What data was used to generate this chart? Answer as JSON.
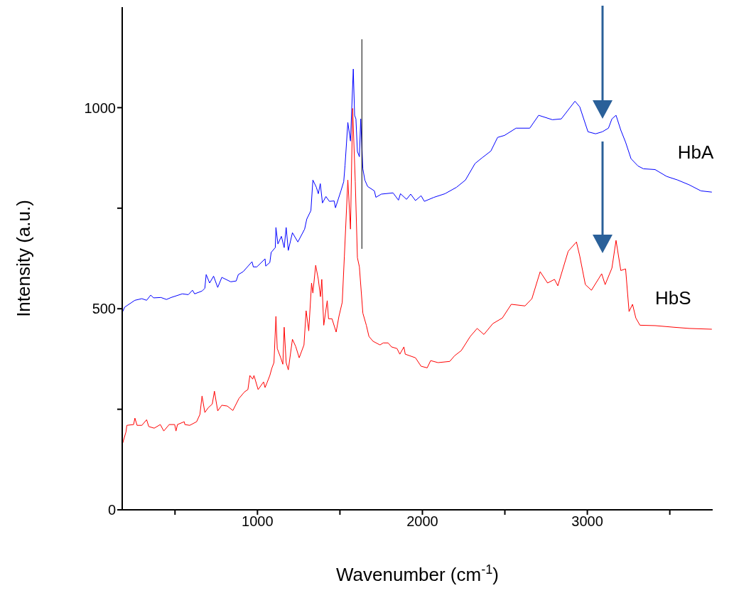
{
  "chart_data": {
    "type": "line",
    "xlabel": "Wavenumber (cm$^{-1}$)",
    "ylabel": "Intensity (a.u.)",
    "xlim": [
      180,
      3760
    ],
    "ylim": [
      0,
      1250
    ],
    "xticks": [
      {
        "value": 500,
        "label": null
      },
      1000,
      {
        "value": 1500,
        "label": null
      },
      2000,
      {
        "value": 2500,
        "label": null
      },
      3000,
      {
        "value": 3500,
        "label": null
      }
    ],
    "yticks": [
      0,
      {
        "value": 250,
        "label": null
      },
      500,
      {
        "value": 750,
        "label": null
      },
      1000
    ],
    "grid": false,
    "legend": false,
    "marker": "none",
    "line_style": "solid",
    "series": [
      {
        "name": "HbA",
        "color": "#0000ff",
        "x": [
          183,
          195,
          257,
          299,
          328,
          353,
          370,
          415,
          448,
          477,
          544,
          581,
          606,
          619,
          664,
          681,
          689,
          710,
          734,
          759,
          784,
          838,
          871,
          884,
          913,
          967,
          975,
          996,
          1046,
          1050,
          1075,
          1083,
          1108,
          1112,
          1124,
          1145,
          1162,
          1174,
          1187,
          1212,
          1245,
          1286,
          1299,
          1324,
          1336,
          1357,
          1369,
          1381,
          1394,
          1415,
          1436,
          1465,
          1473,
          1506,
          1523,
          1531,
          1548,
          1564,
          1581,
          1589,
          1597,
          1606,
          1618,
          1626,
          1639,
          1651,
          1668,
          1709,
          1718,
          1751,
          1822,
          1855,
          1867,
          1904,
          1929,
          1958,
          1992,
          2012,
          2070,
          2137,
          2207,
          2261,
          2319,
          2361,
          2415,
          2456,
          2498,
          2568,
          2651,
          2705,
          2788,
          2842,
          2925,
          2954,
          3004,
          3050,
          3091,
          3128,
          3149,
          3174,
          3203,
          3232,
          3265,
          3307,
          3340,
          3411,
          3481,
          3548,
          3618,
          3689,
          3755
        ],
        "values": [
          493,
          504,
          521,
          525,
          521,
          534,
          527,
          528,
          523,
          528,
          537,
          535,
          546,
          537,
          544,
          551,
          585,
          564,
          581,
          553,
          578,
          567,
          569,
          585,
          592,
          617,
          604,
          604,
          624,
          606,
          615,
          640,
          652,
          702,
          661,
          680,
          652,
          702,
          645,
          689,
          666,
          698,
          723,
          744,
          820,
          802,
          786,
          811,
          763,
          779,
          767,
          768,
          751,
          793,
          816,
          857,
          963,
          917,
          1096,
          981,
          972,
          891,
          878,
          972,
          848,
          820,
          804,
          793,
          777,
          785,
          788,
          770,
          786,
          772,
          785,
          769,
          781,
          767,
          777,
          786,
          802,
          820,
          861,
          875,
          892,
          926,
          931,
          949,
          949,
          981,
          970,
          972,
          1016,
          1002,
          940,
          935,
          940,
          949,
          972,
          981,
          944,
          914,
          873,
          855,
          848,
          846,
          829,
          820,
          808,
          793,
          790
        ]
      },
      {
        "name": "HbS",
        "color": "#ff0000",
        "x": [
          183,
          203,
          208,
          249,
          257,
          270,
          299,
          328,
          341,
          374,
          411,
          432,
          465,
          498,
          506,
          515,
          556,
          560,
          589,
          631,
          651,
          664,
          681,
          702,
          726,
          739,
          759,
          784,
          817,
          851,
          888,
          921,
          942,
          954,
          971,
          979,
          1004,
          1037,
          1046,
          1058,
          1075,
          1087,
          1100,
          1112,
          1120,
          1141,
          1154,
          1162,
          1174,
          1187,
          1212,
          1232,
          1253,
          1282,
          1295,
          1311,
          1328,
          1336,
          1353,
          1369,
          1382,
          1390,
          1402,
          1423,
          1431,
          1452,
          1477,
          1494,
          1514,
          1527,
          1548,
          1564,
          1577,
          1593,
          1606,
          1618,
          1639,
          1660,
          1676,
          1701,
          1743,
          1763,
          1792,
          1813,
          1846,
          1863,
          1888,
          1896,
          1958,
          1992,
          2029,
          2050,
          2095,
          2166,
          2195,
          2236,
          2290,
          2332,
          2373,
          2427,
          2485,
          2539,
          2622,
          2664,
          2714,
          2759,
          2801,
          2821,
          2884,
          2934,
          2954,
          2988,
          3025,
          3066,
          3087,
          3108,
          3149,
          3174,
          3203,
          3232,
          3253,
          3274,
          3294,
          3319,
          3411,
          3523,
          3618,
          3755
        ],
        "values": [
          166,
          194,
          210,
          212,
          228,
          210,
          210,
          224,
          207,
          203,
          212,
          196,
          212,
          212,
          196,
          212,
          219,
          212,
          210,
          219,
          237,
          283,
          242,
          254,
          263,
          295,
          246,
          260,
          258,
          247,
          277,
          293,
          299,
          334,
          325,
          334,
          299,
          318,
          304,
          316,
          334,
          352,
          366,
          481,
          401,
          378,
          362,
          454,
          366,
          348,
          424,
          406,
          378,
          410,
          495,
          445,
          564,
          539,
          608,
          573,
          530,
          573,
          459,
          520,
          475,
          475,
          442,
          481,
          516,
          631,
          820,
          698,
          998,
          816,
          627,
          604,
          489,
          459,
          431,
          419,
          410,
          415,
          415,
          405,
          401,
          387,
          405,
          387,
          378,
          357,
          353,
          371,
          366,
          369,
          383,
          396,
          431,
          451,
          436,
          463,
          477,
          511,
          507,
          525,
          592,
          564,
          573,
          557,
          643,
          666,
          631,
          560,
          546,
          573,
          587,
          560,
          601,
          670,
          595,
          599,
          493,
          511,
          477,
          459,
          458,
          454,
          451,
          449
        ]
      },
      {
        "color": "#000000",
        "x": [
          1633,
          1633
        ],
        "values": [
          649,
          1170
        ]
      }
    ]
  }
}
